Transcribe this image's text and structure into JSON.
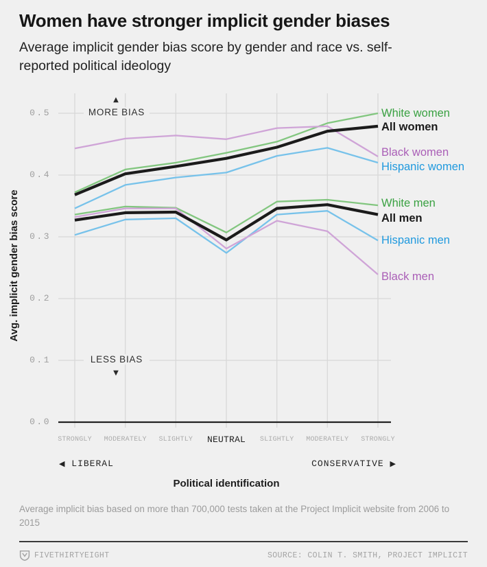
{
  "header": {
    "title": "Women have stronger implicit gender biases",
    "subtitle": "Average implicit gender bias score by gender and race vs. self-reported political ideology"
  },
  "annotations": {
    "more_bias": "MORE BIAS",
    "less_bias": "LESS BIAS",
    "up_arrow": "▲",
    "down_arrow": "▼"
  },
  "x_axis": {
    "left_arrow": "◀",
    "left_label": "LIBERAL",
    "right_label": "CONSERVATIVE",
    "right_arrow": "▶"
  },
  "chart_data": {
    "type": "line",
    "title": "Women have stronger implicit gender biases",
    "xlabel": "Political identification",
    "ylabel": "Avg. implicit gender bias score",
    "ylim": [
      0.0,
      0.52
    ],
    "grid": true,
    "legend_position": "right-of-lines",
    "categories": [
      "Strongly liberal",
      "Moderately liberal",
      "Slightly liberal",
      "Neutral",
      "Slightly conservative",
      "Moderately conservative",
      "Strongly conservative"
    ],
    "x_tick_labels": [
      "STRONGLY",
      "MODERATELY",
      "SLIGHTLY",
      "NEUTRAL",
      "SLIGHTLY",
      "MODERATELY",
      "STRONGLY"
    ],
    "y_ticks": [
      {
        "label": "0.5",
        "value": 0.5
      },
      {
        "label": "0.4",
        "value": 0.4
      },
      {
        "label": "0.3",
        "value": 0.3
      },
      {
        "label": "0.2",
        "value": 0.2
      },
      {
        "label": "0.1",
        "value": 0.1
      },
      {
        "label": "0.0",
        "value": 0.0
      }
    ],
    "series": [
      {
        "name": "White women",
        "line_color": "#82c67f",
        "label_color": "#3aa142",
        "bold": false,
        "values": [
          0.372,
          0.409,
          0.42,
          0.436,
          0.454,
          0.484,
          0.5
        ]
      },
      {
        "name": "All women",
        "line_color": "#1b1b1b",
        "label_color": "#1b1b1b",
        "bold": true,
        "values": [
          0.368,
          0.402,
          0.414,
          0.427,
          0.445,
          0.471,
          0.479
        ]
      },
      {
        "name": "Black women",
        "line_color": "#cfa4d7",
        "label_color": "#aa5fb7",
        "bold": false,
        "values": [
          0.443,
          0.459,
          0.464,
          0.458,
          0.476,
          0.479,
          0.43
        ]
      },
      {
        "name": "Hispanic women",
        "line_color": "#77c2ea",
        "label_color": "#1f99de",
        "bold": false,
        "values": [
          0.346,
          0.384,
          0.396,
          0.404,
          0.431,
          0.444,
          0.42
        ]
      },
      {
        "name": "White men",
        "line_color": "#82c67f",
        "label_color": "#3aa142",
        "bold": false,
        "values": [
          0.336,
          0.349,
          0.347,
          0.307,
          0.357,
          0.36,
          0.351
        ]
      },
      {
        "name": "All men",
        "line_color": "#1b1b1b",
        "label_color": "#1b1b1b",
        "bold": true,
        "values": [
          0.327,
          0.339,
          0.34,
          0.295,
          0.346,
          0.352,
          0.336
        ]
      },
      {
        "name": "Hispanic men",
        "line_color": "#77c2ea",
        "label_color": "#1f99de",
        "bold": false,
        "values": [
          0.303,
          0.328,
          0.33,
          0.274,
          0.336,
          0.342,
          0.294
        ]
      },
      {
        "name": "Black men",
        "line_color": "#cfa4d7",
        "label_color": "#aa5fb7",
        "bold": false,
        "values": [
          0.332,
          0.346,
          0.346,
          0.281,
          0.326,
          0.309,
          0.239
        ]
      }
    ]
  },
  "footnote": "Average implicit bias based on more than 700,000 tests taken at the Project Implicit website from 2006 to 2015",
  "footer": {
    "brand": "FIVETHIRTYEIGHT",
    "source": "SOURCE: COLIN T. SMITH, PROJECT IMPLICIT"
  },
  "colors": {
    "background": "#f0f0f0",
    "gridline": "#d8d8d8",
    "axis": "#222222",
    "muted_text": "#9b9b9b"
  }
}
